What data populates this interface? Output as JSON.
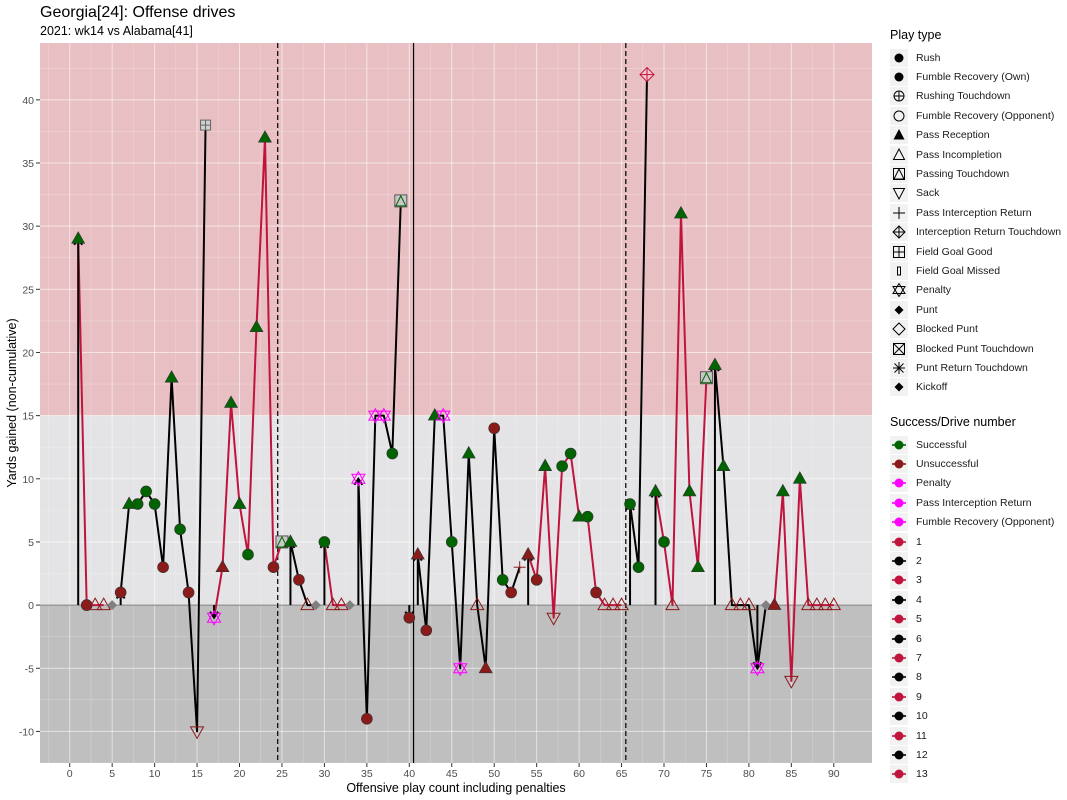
{
  "title": "Georgia[24]: Offense drives",
  "subtitle": "2021: wk14 vs Alabama[41]",
  "chart_data": {
    "type": "scatter",
    "xlabel": "Offensive play count including penalties",
    "ylabel": "Yards gained (non-cumulative)",
    "xlim": [
      -3.5,
      94.5
    ],
    "ylim": [
      -12.5,
      44.5
    ],
    "x_ticks": [
      0,
      5,
      10,
      15,
      20,
      25,
      30,
      35,
      40,
      45,
      50,
      55,
      60,
      65,
      70,
      75,
      80,
      85,
      90
    ],
    "y_ticks": [
      -10,
      -5,
      0,
      5,
      10,
      15,
      20,
      25,
      30,
      35,
      40
    ],
    "bands": [
      {
        "from": 15,
        "to": 44.5,
        "color": "#e8c0c4"
      },
      {
        "from": 0,
        "to": 15,
        "color": "#e4e4e6"
      },
      {
        "from": -12.5,
        "to": 0,
        "color": "#bfbfbf"
      }
    ],
    "quarter_lines_dashed": [
      24.5,
      65.5
    ],
    "half_line_solid": 40.5,
    "colors": {
      "Successful": "#006400",
      "Unsuccessful": "#8b1a1a",
      "Penalty": "#ff00ff",
      "Pass Interception Return": "#ff00ff",
      "Fumble Recovery (Opponent)": "#ff00ff",
      "odd_drive": "#c0143c",
      "even_drive": "#000000",
      "neutral": "#808080"
    },
    "drives": [
      {
        "drive": 1,
        "points": [
          [
            1,
            29,
            "pass",
            "S"
          ],
          [
            2,
            0,
            "rush",
            "U"
          ],
          [
            3,
            0,
            "inc",
            "U"
          ],
          [
            4,
            0,
            "inc",
            "U"
          ]
        ]
      },
      {
        "drive": 2,
        "points": [
          [
            5,
            0,
            "punt",
            "N"
          ]
        ]
      },
      {
        "drive": 2,
        "points": [
          [
            6,
            1,
            "rush",
            "U"
          ],
          [
            7,
            8,
            "pass",
            "S"
          ],
          [
            8,
            8,
            "rush",
            "S"
          ],
          [
            9,
            9,
            "rush",
            "S"
          ],
          [
            10,
            8,
            "rush",
            "S"
          ],
          [
            11,
            3,
            "rush",
            "U"
          ],
          [
            12,
            18,
            "pass",
            "S"
          ],
          [
            13,
            6,
            "rush",
            "S"
          ],
          [
            14,
            1,
            "rush",
            "U"
          ],
          [
            15,
            -10,
            "sack",
            "U"
          ],
          [
            16,
            38,
            "fgg",
            "U"
          ]
        ]
      },
      {
        "drive": 3,
        "points": [
          [
            17,
            -1,
            "pen",
            "P"
          ],
          [
            18,
            3,
            "pass",
            "U"
          ],
          [
            19,
            16,
            "pass",
            "S"
          ],
          [
            20,
            8,
            "pass",
            "S"
          ],
          [
            21,
            4,
            "rush",
            "S"
          ],
          [
            22,
            22,
            "pass",
            "S"
          ],
          [
            23,
            37,
            "pass",
            "S"
          ],
          [
            24,
            3,
            "rush",
            "U"
          ],
          [
            25,
            5,
            "ptd",
            "S"
          ]
        ]
      },
      {
        "drive": 4,
        "points": [
          [
            26,
            5,
            "pass",
            "S"
          ],
          [
            27,
            2,
            "rush",
            "U"
          ],
          [
            28,
            0,
            "inc",
            "U"
          ],
          [
            29,
            0,
            "punt",
            "N"
          ]
        ]
      },
      {
        "drive": 5,
        "points": [
          [
            30,
            5,
            "rush",
            "S"
          ],
          [
            31,
            0,
            "inc",
            "U"
          ],
          [
            32,
            0,
            "inc",
            "U"
          ],
          [
            33,
            0,
            "punt",
            "N"
          ]
        ]
      },
      {
        "drive": 6,
        "points": [
          [
            34,
            10,
            "pen",
            "P"
          ],
          [
            35,
            -9,
            "rush",
            "U"
          ],
          [
            36,
            15,
            "pen",
            "P"
          ],
          [
            37,
            15,
            "pen",
            "P"
          ],
          [
            38,
            12,
            "rush",
            "S"
          ],
          [
            39,
            32,
            "ptd",
            "S"
          ]
        ]
      },
      {
        "drive": 7,
        "points": [
          [
            40,
            -1,
            "rush",
            "U"
          ]
        ]
      },
      {
        "drive": 8,
        "points": [
          [
            41,
            4,
            "pass",
            "U"
          ],
          [
            42,
            -2,
            "rush",
            "U"
          ],
          [
            43,
            15,
            "pass",
            "S"
          ],
          [
            44,
            15,
            "pen",
            "P"
          ],
          [
            45,
            5,
            "rush",
            "S"
          ],
          [
            46,
            -5,
            "pen",
            "P"
          ],
          [
            47,
            12,
            "pass",
            "S"
          ],
          [
            48,
            0,
            "inc",
            "U"
          ],
          [
            49,
            -5,
            "pass",
            "U"
          ],
          [
            50,
            14,
            "rush",
            "U"
          ],
          [
            51,
            2,
            "rush",
            "S"
          ],
          [
            52,
            1,
            "rush",
            "U"
          ],
          [
            53,
            3,
            "pir",
            "P"
          ]
        ]
      },
      {
        "drive": 9,
        "points": [
          [
            54,
            4,
            "pass",
            "U"
          ],
          [
            55,
            2,
            "rush",
            "U"
          ],
          [
            56,
            11,
            "pass",
            "S"
          ],
          [
            57,
            -1,
            "sack",
            "U"
          ],
          [
            58,
            11,
            "rush",
            "S"
          ],
          [
            59,
            12,
            "rush",
            "S"
          ],
          [
            60,
            7,
            "pass",
            "S"
          ],
          [
            61,
            7,
            "rush",
            "S"
          ],
          [
            62,
            1,
            "rush",
            "U"
          ],
          [
            63,
            0,
            "inc",
            "U"
          ],
          [
            64,
            0,
            "inc",
            "U"
          ],
          [
            65,
            0,
            "inc",
            "U"
          ]
        ]
      },
      {
        "drive": 10,
        "points": [
          [
            66,
            8,
            "rush",
            "S"
          ],
          [
            67,
            3,
            "rush",
            "S"
          ],
          [
            68,
            42,
            "irtd",
            "P"
          ]
        ]
      },
      {
        "drive": 11,
        "points": [
          [
            69,
            9,
            "pass",
            "S"
          ],
          [
            70,
            5,
            "rush",
            "S"
          ],
          [
            71,
            0,
            "inc",
            "U"
          ],
          [
            72,
            31,
            "pass",
            "S"
          ],
          [
            73,
            9,
            "pass",
            "S"
          ],
          [
            74,
            3,
            "pass",
            "S"
          ],
          [
            75,
            18,
            "ptd",
            "S"
          ]
        ]
      },
      {
        "drive": 12,
        "points": [
          [
            76,
            19,
            "pass",
            "S"
          ],
          [
            77,
            11,
            "pass",
            "S"
          ],
          [
            78,
            0,
            "inc",
            "U"
          ],
          [
            79,
            0,
            "inc",
            "U"
          ],
          [
            80,
            0,
            "inc",
            "U"
          ],
          [
            81,
            -5,
            "pen",
            "P"
          ],
          [
            82,
            0,
            "punt",
            "N"
          ]
        ]
      },
      {
        "drive": 13,
        "points": [
          [
            83,
            0,
            "pass",
            "U"
          ],
          [
            84,
            9,
            "pass",
            "S"
          ],
          [
            85,
            -6,
            "sack",
            "U"
          ],
          [
            86,
            10,
            "pass",
            "S"
          ],
          [
            87,
            0,
            "inc",
            "U"
          ],
          [
            88,
            0,
            "inc",
            "U"
          ],
          [
            89,
            0,
            "inc",
            "U"
          ],
          [
            90,
            0,
            "inc",
            "U"
          ]
        ]
      }
    ],
    "drive_start_arrows": [
      [
        1,
        29
      ],
      [
        6,
        1
      ],
      [
        17,
        -1
      ],
      [
        26,
        5
      ],
      [
        30,
        5
      ],
      [
        34,
        10
      ],
      [
        40,
        -1
      ],
      [
        41,
        4
      ],
      [
        54,
        4
      ],
      [
        66,
        8
      ],
      [
        69,
        9
      ],
      [
        76,
        19
      ],
      [
        81,
        -5
      ]
    ]
  },
  "legend_play_type": {
    "title": "Play type",
    "items": [
      {
        "label": "Rush",
        "shape": "circle-filled"
      },
      {
        "label": "Fumble Recovery (Own)",
        "shape": "circle-filled"
      },
      {
        "label": "Rushing Touchdown",
        "shape": "circle-plus"
      },
      {
        "label": "Fumble Recovery (Opponent)",
        "shape": "circle-open"
      },
      {
        "label": "Pass Reception",
        "shape": "triangle-filled"
      },
      {
        "label": "Pass Incompletion",
        "shape": "triangle-open"
      },
      {
        "label": "Passing Touchdown",
        "shape": "square-triangle"
      },
      {
        "label": "Sack",
        "shape": "triangle-down-open"
      },
      {
        "label": "Pass Interception Return",
        "shape": "plus"
      },
      {
        "label": "Interception Return Touchdown",
        "shape": "diamond-plus"
      },
      {
        "label": "Field Goal Good",
        "shape": "square-plus"
      },
      {
        "label": "Field Goal Missed",
        "shape": "narrow-rect"
      },
      {
        "label": "Penalty",
        "shape": "star-david"
      },
      {
        "label": "Punt",
        "shape": "diamond-filled"
      },
      {
        "label": "Blocked Punt",
        "shape": "diamond-open"
      },
      {
        "label": "Blocked Punt Touchdown",
        "shape": "square-x"
      },
      {
        "label": "Punt Return Touchdown",
        "shape": "asterisk"
      },
      {
        "label": "Kickoff",
        "shape": "diamond-filled"
      }
    ]
  },
  "legend_success": {
    "title": "Success/Drive number",
    "items": [
      {
        "label": "Successful",
        "color": "#006400"
      },
      {
        "label": "Unsuccessful",
        "color": "#8b1a1a"
      },
      {
        "label": "Penalty",
        "color": "#ff00ff"
      },
      {
        "label": "Pass Interception Return",
        "color": "#ff00ff"
      },
      {
        "label": "Fumble Recovery (Opponent)",
        "color": "#ff00ff"
      },
      {
        "label": "1",
        "color": "#c0143c"
      },
      {
        "label": "2",
        "color": "#000000"
      },
      {
        "label": "3",
        "color": "#c0143c"
      },
      {
        "label": "4",
        "color": "#000000"
      },
      {
        "label": "5",
        "color": "#c0143c"
      },
      {
        "label": "6",
        "color": "#000000"
      },
      {
        "label": "7",
        "color": "#c0143c"
      },
      {
        "label": "8",
        "color": "#000000"
      },
      {
        "label": "9",
        "color": "#c0143c"
      },
      {
        "label": "10",
        "color": "#000000"
      },
      {
        "label": "11",
        "color": "#c0143c"
      },
      {
        "label": "12",
        "color": "#000000"
      },
      {
        "label": "13",
        "color": "#c0143c"
      }
    ]
  }
}
